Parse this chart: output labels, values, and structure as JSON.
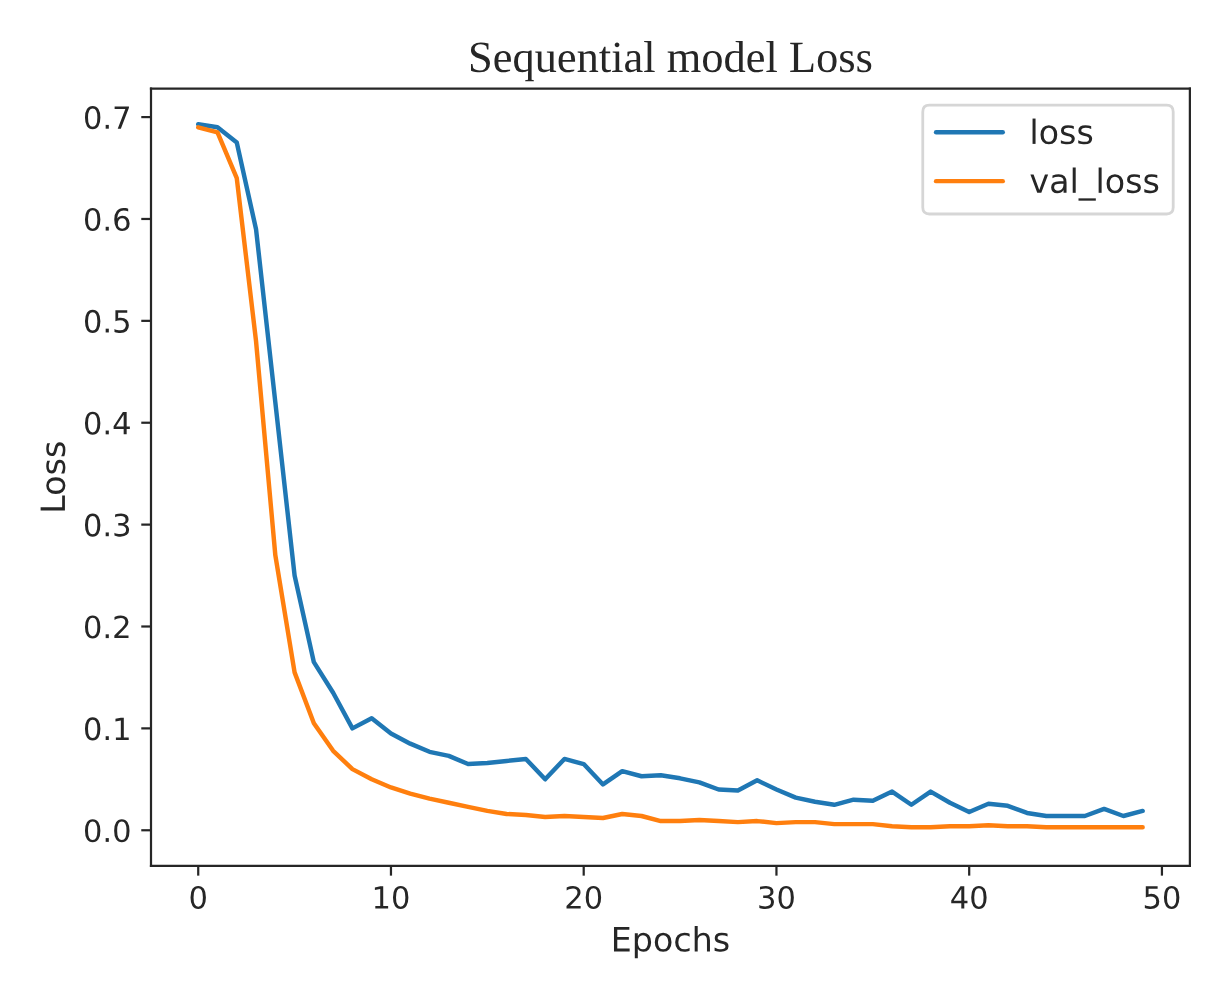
{
  "chart_data": {
    "type": "line",
    "title": "Sequential model Loss",
    "xlabel": "Epochs",
    "ylabel": "Loss",
    "x": [
      0,
      1,
      2,
      3,
      4,
      5,
      6,
      7,
      8,
      9,
      10,
      11,
      12,
      13,
      14,
      15,
      16,
      17,
      18,
      19,
      20,
      21,
      22,
      23,
      24,
      25,
      26,
      27,
      28,
      29,
      30,
      31,
      32,
      33,
      34,
      35,
      36,
      37,
      38,
      39,
      40,
      41,
      42,
      43,
      44,
      45,
      46,
      47,
      48,
      49
    ],
    "series": [
      {
        "name": "loss",
        "color": "#1f77b4",
        "values": [
          0.693,
          0.69,
          0.675,
          0.59,
          0.42,
          0.25,
          0.165,
          0.135,
          0.1,
          0.11,
          0.095,
          0.085,
          0.077,
          0.073,
          0.065,
          0.066,
          0.068,
          0.07,
          0.05,
          0.07,
          0.065,
          0.045,
          0.058,
          0.053,
          0.054,
          0.051,
          0.047,
          0.04,
          0.039,
          0.049,
          0.04,
          0.032,
          0.028,
          0.025,
          0.03,
          0.029,
          0.038,
          0.025,
          0.038,
          0.027,
          0.018,
          0.026,
          0.024,
          0.017,
          0.014,
          0.014,
          0.014,
          0.021,
          0.014,
          0.019
        ]
      },
      {
        "name": "val_loss",
        "color": "#ff7f0e",
        "values": [
          0.69,
          0.685,
          0.64,
          0.48,
          0.27,
          0.155,
          0.105,
          0.078,
          0.06,
          0.05,
          0.042,
          0.036,
          0.031,
          0.027,
          0.023,
          0.019,
          0.016,
          0.015,
          0.013,
          0.014,
          0.013,
          0.012,
          0.016,
          0.014,
          0.009,
          0.009,
          0.01,
          0.009,
          0.008,
          0.009,
          0.007,
          0.008,
          0.008,
          0.006,
          0.006,
          0.006,
          0.004,
          0.003,
          0.003,
          0.004,
          0.004,
          0.005,
          0.004,
          0.004,
          0.003,
          0.003,
          0.003,
          0.003,
          0.003,
          0.003
        ]
      }
    ],
    "xlim": [
      -2.45,
      51.45
    ],
    "ylim": [
      -0.035,
      0.728
    ],
    "xticks": [
      0,
      10,
      20,
      30,
      40,
      50
    ],
    "yticks": [
      {
        "value": 0,
        "label": "0.0"
      },
      {
        "value": 0.1,
        "label": "0.1"
      },
      {
        "value": 0.2,
        "label": "0.2"
      },
      {
        "value": 0.3,
        "label": "0.3"
      },
      {
        "value": 0.4,
        "label": "0.4"
      },
      {
        "value": 0.5,
        "label": "0.5"
      },
      {
        "value": 0.6,
        "label": "0.6"
      },
      {
        "value": 0.7,
        "label": "0.7"
      }
    ],
    "legend": "top right",
    "grid": false
  }
}
